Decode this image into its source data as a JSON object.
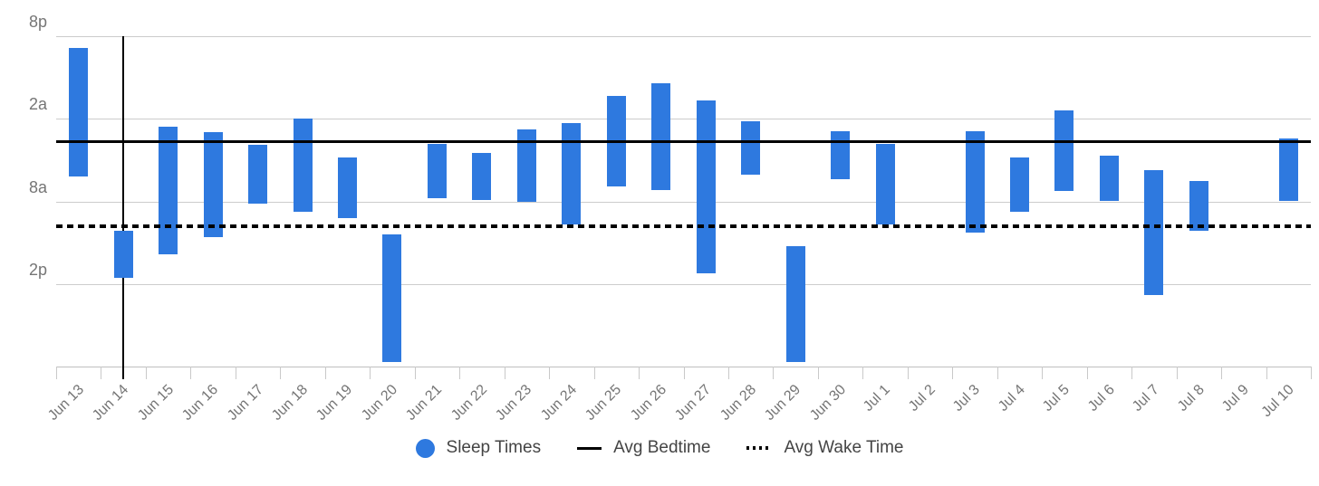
{
  "chart_data": {
    "type": "bar",
    "variant": "floating-range-time-bars",
    "title": "",
    "xlabel": "",
    "ylabel": "",
    "legend_position": "bottom-center",
    "grid": true,
    "colors": {
      "bar": "#2e79df",
      "avg_line": "#000000",
      "annotation_line": "#000000",
      "grid_line": "#cccccc",
      "axis_text": "#757575",
      "legend_text": "#444444",
      "background": "#ffffff"
    },
    "y_axis": {
      "top_time": "20:00",
      "hours_span": 24,
      "ticks": [
        {
          "label": "8p",
          "time": "20:00"
        },
        {
          "label": "2a",
          "time": "02:00"
        },
        {
          "label": "8a",
          "time": "08:00"
        },
        {
          "label": "2p",
          "time": "14:00"
        }
      ]
    },
    "categories": [
      "Jun 13",
      "Jun 14",
      "Jun 15",
      "Jun 16",
      "Jun 17",
      "Jun 18",
      "Jun 19",
      "Jun 20",
      "Jun 21",
      "Jun 22",
      "Jun 23",
      "Jun 24",
      "Jun 25",
      "Jun 26",
      "Jun 27",
      "Jun 28",
      "Jun 29",
      "Jun 30",
      "Jul 1",
      "Jul 2",
      "Jul 3",
      "Jul 4",
      "Jul 5",
      "Jul 6",
      "Jul 7",
      "Jul 8",
      "Jul 9",
      "Jul 10"
    ],
    "sleep_times": [
      {
        "date": "Jun 13",
        "start": "20:50",
        "end": "06:10"
      },
      {
        "date": "Jun 14",
        "start": "10:10",
        "end": "13:35"
      },
      {
        "date": "Jun 15",
        "start": "02:35",
        "end": "11:50"
      },
      {
        "date": "Jun 16",
        "start": "03:00",
        "end": "10:35"
      },
      {
        "date": "Jun 17",
        "start": "03:55",
        "end": "08:10"
      },
      {
        "date": "Jun 18",
        "start": "02:00",
        "end": "08:45"
      },
      {
        "date": "Jun 19",
        "start": "04:50",
        "end": "09:15"
      },
      {
        "date": "Jun 20",
        "start": "10:25",
        "end": "19:40"
      },
      {
        "date": "Jun 21",
        "start": "03:50",
        "end": "07:45"
      },
      {
        "date": "Jun 22",
        "start": "04:30",
        "end": "07:55"
      },
      {
        "date": "Jun 23",
        "start": "02:45",
        "end": "08:00"
      },
      {
        "date": "Jun 24",
        "start": "02:20",
        "end": "09:40"
      },
      {
        "date": "Jun 25",
        "start": "00:20",
        "end": "06:55"
      },
      {
        "date": "Jun 26",
        "start": "23:25",
        "end": "07:10"
      },
      {
        "date": "Jun 27",
        "start": "00:40",
        "end": "13:15"
      },
      {
        "date": "Jun 28",
        "start": "02:10",
        "end": "06:05"
      },
      {
        "date": "Jun 29",
        "start": "11:15",
        "end": "19:40"
      },
      {
        "date": "Jun 30",
        "start": "02:55",
        "end": "06:25"
      },
      {
        "date": "Jul 1",
        "start": "03:50",
        "end": "09:40"
      },
      null,
      {
        "date": "Jul 3",
        "start": "02:55",
        "end": "10:15"
      },
      {
        "date": "Jul 4",
        "start": "04:50",
        "end": "08:45"
      },
      {
        "date": "Jul 5",
        "start": "01:25",
        "end": "07:15"
      },
      {
        "date": "Jul 6",
        "start": "04:40",
        "end": "08:00"
      },
      {
        "date": "Jul 7",
        "start": "05:45",
        "end": "14:50"
      },
      {
        "date": "Jul 8",
        "start": "06:30",
        "end": "10:10"
      },
      null,
      {
        "date": "Jul 10",
        "start": "03:25",
        "end": "08:00"
      }
    ],
    "avg_bedtime": "03:40",
    "avg_wake_time": "09:50",
    "annotation_vline_category": "Jun 14",
    "legend": [
      {
        "label": "Sleep Times",
        "swatch": "circle"
      },
      {
        "label": "Avg Bedtime",
        "swatch": "solid-line"
      },
      {
        "label": "Avg Wake Time",
        "swatch": "dotted-line"
      }
    ]
  }
}
